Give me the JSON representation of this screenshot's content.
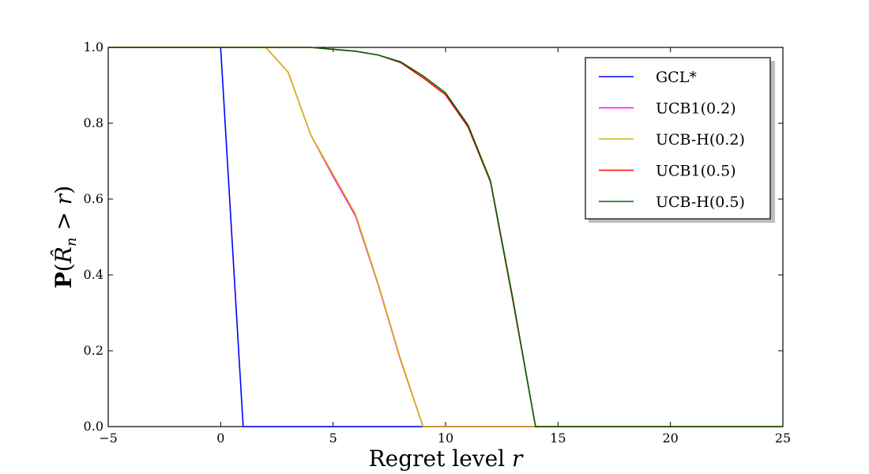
{
  "chart_data": {
    "type": "line",
    "xlabel": "Regret level r",
    "ylabel": "P(R̂_n > r)",
    "xlim": [
      -5,
      25
    ],
    "ylim": [
      0.0,
      1.0
    ],
    "xticks": [
      "−5",
      "0",
      "5",
      "10",
      "15",
      "20",
      "25"
    ],
    "xtick_values": [
      -5,
      0,
      5,
      10,
      15,
      20,
      25
    ],
    "yticks": [
      "0.0",
      "0.2",
      "0.4",
      "0.6",
      "0.8",
      "1.0"
    ],
    "ytick_values": [
      0.0,
      0.2,
      0.4,
      0.6,
      0.8,
      1.0
    ],
    "grid": false,
    "legend_position": "top-right",
    "series": [
      {
        "name": "GCL*",
        "color": "#0000ff",
        "x": [
          -5,
          0,
          1,
          25
        ],
        "y": [
          1.0,
          1.0,
          0.0,
          0.0
        ]
      },
      {
        "name": "UCB1(0.2)",
        "color": "#ff00ff",
        "x": [
          -5,
          2,
          3,
          4,
          5,
          6,
          7,
          8,
          9,
          25
        ],
        "y": [
          1.0,
          1.0,
          0.935,
          0.77,
          0.66,
          0.555,
          0.375,
          0.175,
          0.0,
          0.0
        ]
      },
      {
        "name": "UCB-H(0.2)",
        "color": "#d4b800",
        "x": [
          -5,
          2,
          3,
          4,
          5,
          6,
          7,
          8,
          9,
          25
        ],
        "y": [
          1.0,
          1.0,
          0.935,
          0.77,
          0.665,
          0.56,
          0.378,
          0.178,
          0.0,
          0.0
        ]
      },
      {
        "name": "UCB1(0.5)",
        "color": "#ff0000",
        "x": [
          -5,
          4,
          5,
          6,
          7,
          8,
          9,
          10,
          11,
          12,
          13,
          14,
          25
        ],
        "y": [
          1.0,
          1.0,
          0.995,
          0.99,
          0.98,
          0.96,
          0.92,
          0.875,
          0.79,
          0.645,
          0.33,
          0.0,
          0.0
        ]
      },
      {
        "name": "UCB-H(0.5)",
        "color": "#006400",
        "x": [
          -5,
          4,
          5,
          6,
          7,
          8,
          9,
          10,
          11,
          12,
          13,
          14,
          25
        ],
        "y": [
          1.0,
          1.0,
          0.995,
          0.99,
          0.98,
          0.962,
          0.925,
          0.88,
          0.795,
          0.648,
          0.335,
          0.0,
          0.0
        ]
      }
    ]
  }
}
